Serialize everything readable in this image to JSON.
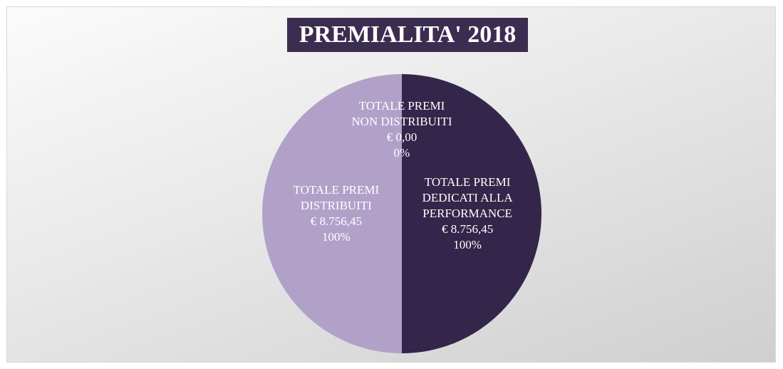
{
  "chart_data": {
    "type": "pie",
    "title": "PREMIALITA' 2018",
    "categories": [
      "TOTALE PREMI DEDICATI ALLA PERFORMANCE",
      "TOTALE PREMI DISTRIBUITI",
      "TOTALE PREMI NON DISTRIBUITI"
    ],
    "values": [
      8756.45,
      8756.45,
      0
    ],
    "value_labels": [
      "€ 8.756,45",
      "€ 8.756,45",
      "€ 0,00"
    ],
    "percentage_labels": [
      "100%",
      "100%",
      "0%"
    ],
    "colors": [
      "#33264a",
      "#b1a1c9",
      "#b1a1c9"
    ]
  }
}
